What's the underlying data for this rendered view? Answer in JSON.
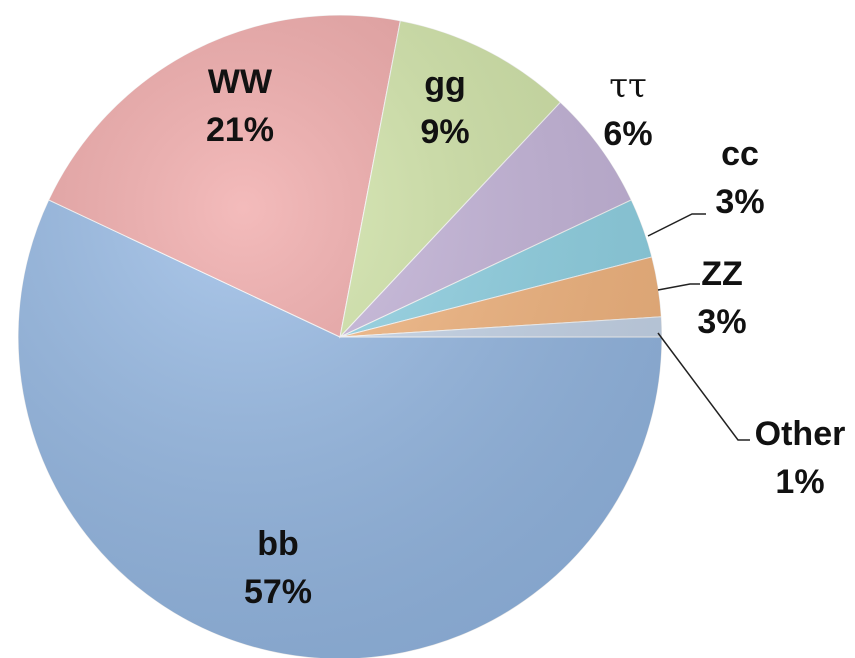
{
  "chart_data": {
    "type": "pie",
    "categories": [
      "bb",
      "WW",
      "gg",
      "ττ",
      "cc",
      "ZZ",
      "Other"
    ],
    "values": [
      57,
      21,
      9,
      6,
      3,
      3,
      1
    ],
    "value_labels": [
      "57%",
      "21%",
      "9%",
      "6%",
      "3%",
      "3%",
      "1%"
    ],
    "colors": [
      "#94b9e6",
      "#f0a5a5",
      "#d3e7a8",
      "#c7b6dd",
      "#8fd5e8",
      "#f8b77e",
      "#c9d9ee"
    ]
  }
}
